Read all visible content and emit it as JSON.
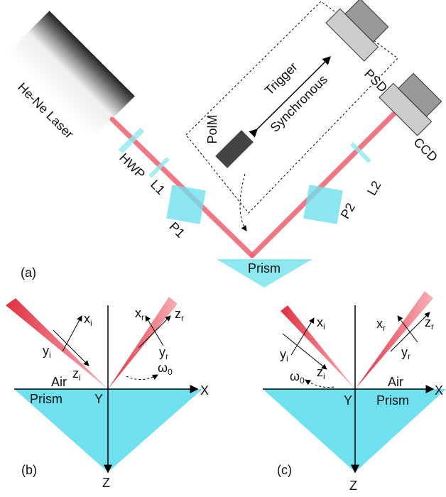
{
  "setup": {
    "laser": "He-Ne Laser",
    "hwp": "HWP",
    "l1": "L1",
    "p1": "P1",
    "polm": "PolM",
    "trigger": "Trigger",
    "synchronous": "Synchronous",
    "psd": "PSD",
    "ccd": "CCD",
    "l2": "L2",
    "p2": "P2",
    "prism": "Prism",
    "panel": "(a)"
  },
  "panels": [
    {
      "panel": "(b)",
      "air": "Air",
      "prism": "Prism",
      "x": "X",
      "y": "Y",
      "z": "Z",
      "angle": {
        "main": "ω",
        "sub": "0"
      },
      "labels": [
        {
          "main": "x",
          "sub": "i"
        },
        {
          "main": "y",
          "sub": "i"
        },
        {
          "main": "z",
          "sub": "i"
        },
        {
          "main": "x",
          "sub": "r"
        },
        {
          "main": "y",
          "sub": "r"
        },
        {
          "main": "z",
          "sub": "r"
        }
      ]
    },
    {
      "panel": "(c)",
      "air": "Air",
      "prism": "Prism",
      "x": "X",
      "y": "Y",
      "z": "Z",
      "angle": {
        "main": "ω",
        "sub": "0"
      },
      "labels": [
        {
          "main": "x",
          "sub": "i"
        },
        {
          "main": "y",
          "sub": "i"
        },
        {
          "main": "z",
          "sub": "i"
        },
        {
          "main": "x",
          "sub": "r"
        },
        {
          "main": "y",
          "sub": "r"
        },
        {
          "main": "z",
          "sub": "r"
        }
      ]
    }
  ]
}
